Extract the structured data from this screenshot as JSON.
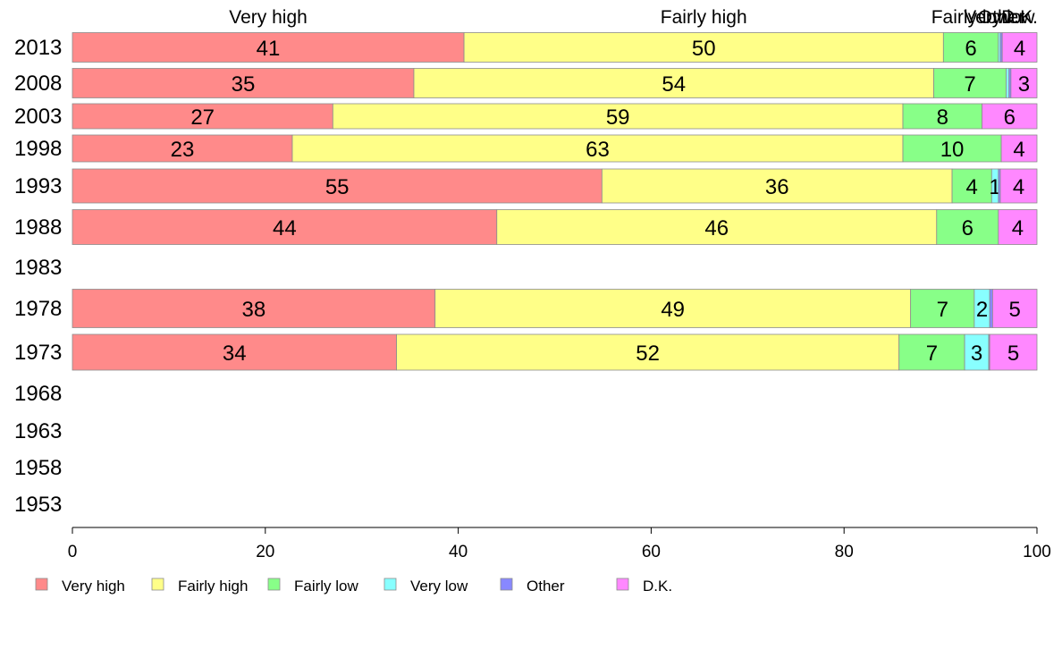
{
  "chart_data": {
    "type": "bar",
    "orientation": "horizontal",
    "stacked": true,
    "title": "",
    "xlabel": "",
    "ylabel": "",
    "xlim": [
      0,
      100
    ],
    "x_ticks": [
      "0",
      "20",
      "40",
      "60",
      "80",
      "100"
    ],
    "categories": [
      "2013",
      "2008",
      "2003",
      "1998",
      "1993",
      "1988",
      "1983",
      "1978",
      "1973",
      "1968",
      "1963",
      "1958",
      "1953"
    ],
    "series": [
      {
        "name": "Very high",
        "color": "#ff8a8a",
        "values": [
          40.6,
          35.4,
          27.0,
          22.8,
          54.9,
          44.0,
          null,
          37.6,
          33.6,
          null,
          null,
          null,
          null
        ],
        "labels": [
          "41",
          "35",
          "27",
          "23",
          "55",
          "44",
          "",
          "38",
          "34",
          "",
          "",
          "",
          ""
        ]
      },
      {
        "name": "Fairly high",
        "color": "#ffff88",
        "values": [
          49.7,
          53.9,
          59.1,
          63.3,
          36.3,
          45.6,
          null,
          49.3,
          52.1,
          null,
          null,
          null,
          null
        ],
        "labels": [
          "50",
          "54",
          "59",
          "63",
          "36",
          "46",
          "",
          "49",
          "52",
          "",
          "",
          "",
          ""
        ]
      },
      {
        "name": "Fairly low",
        "color": "#88ff88",
        "values": [
          5.7,
          7.5,
          8.2,
          10.2,
          4.1,
          6.4,
          null,
          6.6,
          6.8,
          null,
          null,
          null,
          null
        ],
        "labels": [
          "6",
          "7",
          "8",
          "10",
          "4",
          "6",
          "",
          "7",
          "7",
          "",
          "",
          "",
          ""
        ]
      },
      {
        "name": "Very low",
        "color": "#88ffff",
        "values": [
          0.2,
          0.3,
          0.0,
          0.0,
          0.7,
          0.0,
          null,
          1.6,
          2.5,
          null,
          null,
          null,
          null
        ],
        "labels": [
          "",
          "",
          "",
          "",
          "1",
          "",
          "",
          "2",
          "3",
          "",
          "",
          "",
          ""
        ]
      },
      {
        "name": "Other",
        "color": "#8888ff",
        "values": [
          0.2,
          0.2,
          0.0,
          0.0,
          0.2,
          0.0,
          null,
          0.3,
          0.1,
          null,
          null,
          null,
          null
        ],
        "labels": [
          "",
          "",
          "",
          "",
          "",
          "",
          "",
          "",
          "",
          "",
          "",
          "",
          ""
        ]
      },
      {
        "name": "D.K.",
        "color": "#ff88ff",
        "values": [
          3.6,
          2.7,
          5.7,
          3.7,
          3.8,
          4.0,
          null,
          4.6,
          4.9,
          null,
          null,
          null,
          null
        ],
        "labels": [
          "4",
          "3",
          "6",
          "4",
          "4",
          "4",
          "",
          "5",
          "5",
          "",
          "",
          "",
          ""
        ]
      }
    ],
    "top_labels": [
      {
        "text": "Very high",
        "series": 0
      },
      {
        "text": "Fairly high",
        "series": 1
      },
      {
        "text": "Fairly low",
        "series": 2
      },
      {
        "text": "Very low",
        "series": 3
      },
      {
        "text": "Other",
        "series": 4
      },
      {
        "text": "D.K.",
        "series": 5
      }
    ],
    "grid": false,
    "legend": "bottom"
  }
}
